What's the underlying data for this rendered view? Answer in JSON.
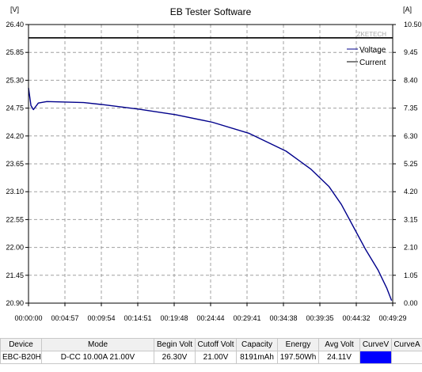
{
  "window": {
    "title": "EB Tester Software"
  },
  "chart_data": {
    "type": "line",
    "title": "EB Tester Software",
    "left_unit": "[V]",
    "right_unit": "[A]",
    "watermark": "ZKETECH",
    "left_ticks": [
      "26.40",
      "25.85",
      "25.30",
      "24.75",
      "24.20",
      "23.65",
      "23.10",
      "22.55",
      "22.00",
      "21.45",
      "20.90"
    ],
    "right_ticks": [
      "10.50",
      "9.45",
      "8.40",
      "7.35",
      "6.30",
      "5.25",
      "4.20",
      "3.15",
      "2.10",
      "1.05",
      "0.00"
    ],
    "x_ticks": [
      "00:00:00",
      "00:04:57",
      "00:09:54",
      "00:14:51",
      "00:19:48",
      "00:24:44",
      "00:29:41",
      "00:34:38",
      "00:39:35",
      "00:44:32",
      "00:49:29"
    ],
    "ylim_left": [
      20.9,
      26.4
    ],
    "ylim_right": [
      0.0,
      10.5
    ],
    "xlim_seconds": [
      0,
      2969
    ],
    "grid": true,
    "legend_position": "top-right",
    "series": [
      {
        "name": "Voltage",
        "axis": "left",
        "color": "#00008b",
        "x": [
          0,
          20,
          40,
          80,
          150,
          300,
          450,
          600,
          900,
          1200,
          1500,
          1800,
          2100,
          2300,
          2450,
          2550,
          2650,
          2750,
          2850,
          2920,
          2960
        ],
        "y": [
          25.15,
          24.8,
          24.72,
          24.85,
          24.88,
          24.87,
          24.86,
          24.82,
          24.73,
          24.62,
          24.47,
          24.25,
          23.9,
          23.55,
          23.2,
          22.85,
          22.4,
          21.95,
          21.55,
          21.2,
          20.95
        ]
      },
      {
        "name": "Current",
        "axis": "right",
        "color": "#000000",
        "x": [
          0,
          2969
        ],
        "y": [
          10.0,
          10.0
        ]
      }
    ]
  },
  "status_table": {
    "headers": [
      "Device",
      "Mode",
      "Begin Volt",
      "Cutoff Volt",
      "Capacity",
      "Energy",
      "Avg Volt",
      "CurveV",
      "CurveA"
    ],
    "row": [
      "EBC-B20H",
      "D-CC  10.00A  21.00V",
      "26.30V",
      "21.00V",
      "8191mAh",
      "197.50Wh",
      "24.11V",
      "",
      ""
    ],
    "curve_color": "#0000ff"
  }
}
